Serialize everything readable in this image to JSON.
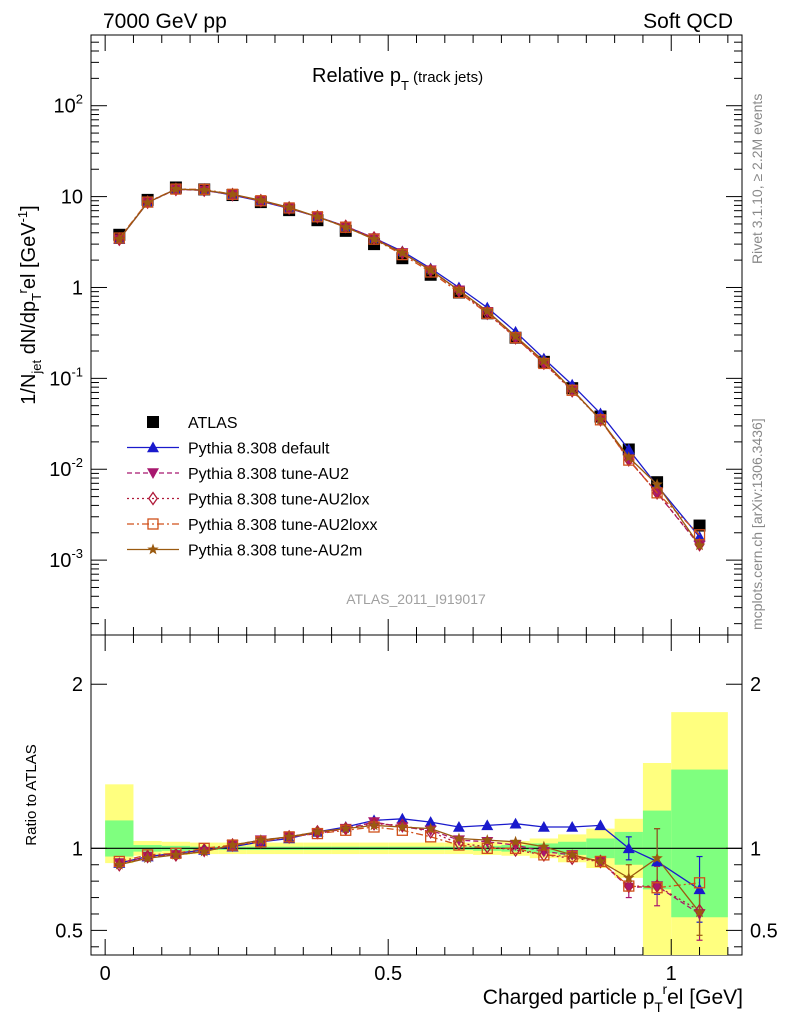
{
  "header": {
    "left": "7000 GeV pp",
    "right": "Soft QCD"
  },
  "side_labels": {
    "top": "Rivet 3.1.10, ≥ 2.2M events",
    "bottom": "mcplots.cern.ch [arXiv:1306.3436]"
  },
  "chart_data": [
    {
      "type": "scatter",
      "title": "Relative p_T (track jets)",
      "ylabel": "1/N_jet dN/dp_T^rel [GeV^-1]",
      "yscale": "log",
      "ylim": [
        0.00015,
        600
      ],
      "xlim": [
        -0.025,
        1.125
      ],
      "reference_label": "ATLAS_2011_I919017",
      "legend_position": "center-left",
      "x": [
        0.025,
        0.075,
        0.125,
        0.175,
        0.225,
        0.275,
        0.325,
        0.375,
        0.425,
        0.475,
        0.525,
        0.575,
        0.625,
        0.675,
        0.725,
        0.775,
        0.825,
        0.875,
        0.925,
        0.975,
        1.05
      ],
      "series": [
        {
          "name": "ATLAS",
          "marker": "square",
          "color": "#000000",
          "values": [
            3.8,
            9.2,
            12.6,
            12.0,
            10.4,
            8.7,
            7.1,
            5.5,
            4.2,
            3.0,
            2.1,
            1.38,
            0.88,
            0.52,
            0.28,
            0.152,
            0.078,
            0.038,
            0.0165,
            0.0072,
            0.0024
          ]
        },
        {
          "name": "Pythia 8.308 default",
          "marker": "triangle-up",
          "color": "#1a1acc",
          "values": [
            3.4,
            8.6,
            12.1,
            11.8,
            10.4,
            8.9,
            7.4,
            6.0,
            4.7,
            3.5,
            2.5,
            1.62,
            1.0,
            0.6,
            0.325,
            0.165,
            0.085,
            0.041,
            0.0165,
            0.0066,
            0.0018
          ]
        },
        {
          "name": "Pythia 8.308 tune-AU2",
          "marker": "triangle-down",
          "color": "#a8186f",
          "values": [
            3.4,
            8.6,
            12.0,
            11.7,
            10.5,
            9.0,
            7.5,
            6.0,
            4.7,
            3.5,
            2.4,
            1.55,
            0.93,
            0.54,
            0.285,
            0.148,
            0.075,
            0.035,
            0.0128,
            0.0055,
            0.00145
          ]
        },
        {
          "name": "Pythia 8.308 tune-AU2lox",
          "marker": "diamond-open",
          "color": "#b01a3a",
          "values": [
            3.4,
            8.7,
            12.0,
            11.8,
            10.5,
            9.0,
            7.5,
            6.0,
            4.7,
            3.5,
            2.4,
            1.54,
            0.92,
            0.52,
            0.28,
            0.147,
            0.073,
            0.035,
            0.0127,
            0.0055,
            0.00148
          ]
        },
        {
          "name": "Pythia 8.308 tune-AU2loxx",
          "marker": "square-open",
          "color": "#d0501a",
          "values": [
            3.5,
            8.7,
            12.1,
            12.0,
            10.6,
            9.0,
            7.5,
            6.0,
            4.6,
            3.4,
            2.3,
            1.48,
            0.88,
            0.52,
            0.28,
            0.146,
            0.074,
            0.035,
            0.0126,
            0.0055,
            0.0019
          ]
        },
        {
          "name": "Pythia 8.308 tune-AU2m",
          "marker": "star",
          "color": "#9a5a10",
          "values": [
            3.4,
            8.6,
            12.1,
            11.8,
            10.6,
            9.1,
            7.6,
            6.0,
            4.6,
            3.4,
            2.4,
            1.55,
            0.93,
            0.55,
            0.29,
            0.155,
            0.075,
            0.035,
            0.0135,
            0.0068,
            0.00145
          ]
        }
      ]
    },
    {
      "type": "scatter",
      "ylabel": "Ratio to ATLAS",
      "xlabel": "Charged particle p_T^rel [GeV]",
      "ylim": [
        0.35,
        2.3
      ],
      "xlim": [
        -0.025,
        1.125
      ],
      "x_ticks": [
        "0",
        "0.5",
        "1"
      ],
      "y_ticks": [
        "0.5",
        "1",
        "2"
      ],
      "bands": {
        "x_edges": [
          0.0,
          0.05,
          0.1,
          0.15,
          0.2,
          0.25,
          0.3,
          0.35,
          0.4,
          0.45,
          0.5,
          0.55,
          0.6,
          0.65,
          0.7,
          0.75,
          0.8,
          0.85,
          0.9,
          0.95,
          1.0,
          1.1
        ],
        "stat_color": "#7fff7f",
        "total_color": "#ffff7f",
        "total": [
          [
            0.91,
            1.39
          ],
          [
            0.955,
            1.045
          ],
          [
            0.96,
            1.04
          ],
          [
            0.965,
            1.035
          ],
          [
            0.965,
            1.035
          ],
          [
            0.965,
            1.035
          ],
          [
            0.965,
            1.035
          ],
          [
            0.965,
            1.035
          ],
          [
            0.965,
            1.035
          ],
          [
            0.965,
            1.035
          ],
          [
            0.965,
            1.035
          ],
          [
            0.965,
            1.035
          ],
          [
            0.965,
            1.035
          ],
          [
            0.96,
            1.04
          ],
          [
            0.955,
            1.045
          ],
          [
            0.94,
            1.06
          ],
          [
            0.915,
            1.085
          ],
          [
            0.88,
            1.12
          ],
          [
            0.82,
            1.18
          ],
          [
            0.35,
            1.52
          ],
          [
            0.35,
            1.83
          ]
        ],
        "stat": [
          [
            0.95,
            1.17
          ],
          [
            0.98,
            1.02
          ],
          [
            0.985,
            1.015
          ],
          [
            0.99,
            1.01
          ],
          [
            0.99,
            1.01
          ],
          [
            0.99,
            1.01
          ],
          [
            0.99,
            1.01
          ],
          [
            0.99,
            1.01
          ],
          [
            0.99,
            1.01
          ],
          [
            0.99,
            1.01
          ],
          [
            0.99,
            1.01
          ],
          [
            0.99,
            1.01
          ],
          [
            0.99,
            1.01
          ],
          [
            0.985,
            1.015
          ],
          [
            0.98,
            1.02
          ],
          [
            0.97,
            1.03
          ],
          [
            0.96,
            1.04
          ],
          [
            0.94,
            1.06
          ],
          [
            0.9,
            1.1
          ],
          [
            0.75,
            1.23
          ],
          [
            0.58,
            1.48
          ]
        ]
      },
      "series": [
        {
          "name": "Pythia 8.308 default",
          "values": [
            0.91,
            0.95,
            0.97,
            0.99,
            1.01,
            1.04,
            1.06,
            1.1,
            1.13,
            1.17,
            1.18,
            1.16,
            1.13,
            1.14,
            1.15,
            1.13,
            1.13,
            1.14,
            1.0,
            0.92,
            0.75
          ]
        },
        {
          "name": "Pythia 8.308 tune-AU2",
          "values": [
            0.91,
            0.95,
            0.96,
            0.98,
            1.02,
            1.05,
            1.07,
            1.09,
            1.12,
            1.16,
            1.13,
            1.11,
            1.05,
            1.04,
            1.02,
            0.98,
            0.96,
            0.92,
            0.76,
            0.77,
            0.6
          ]
        },
        {
          "name": "Pythia 8.308 tune-AU2lox",
          "values": [
            0.9,
            0.95,
            0.96,
            0.99,
            1.02,
            1.04,
            1.07,
            1.1,
            1.12,
            1.15,
            1.14,
            1.1,
            1.03,
            1.01,
            0.99,
            0.96,
            0.94,
            0.92,
            0.77,
            0.77,
            0.62
          ]
        },
        {
          "name": "Pythia 8.308 tune-AU2loxx",
          "values": [
            0.92,
            0.96,
            0.97,
            1.0,
            1.02,
            1.04,
            1.07,
            1.09,
            1.11,
            1.13,
            1.11,
            1.07,
            1.02,
            1.0,
            1.0,
            0.96,
            0.95,
            0.92,
            0.77,
            0.76,
            0.79
          ]
        },
        {
          "name": "Pythia 8.308 tune-AU2m",
          "values": [
            0.9,
            0.94,
            0.96,
            0.98,
            1.02,
            1.05,
            1.07,
            1.1,
            1.12,
            1.14,
            1.13,
            1.12,
            1.06,
            1.05,
            1.04,
            1.01,
            0.96,
            0.92,
            0.82,
            0.94,
            0.61
          ]
        }
      ],
      "error_bars": [
        {
          "series": "Pythia 8.308 default",
          "points": {
            "18": [
              0.93,
              1.07
            ],
            "19": [
              0.72,
              1.12
            ],
            "20": [
              0.55,
              0.95
            ]
          }
        },
        {
          "series": "Pythia 8.308 tune-AU2",
          "points": {
            "18": [
              0.7,
              0.82
            ],
            "19": [
              0.65,
              0.89
            ],
            "20": [
              0.44,
              0.76
            ]
          }
        },
        {
          "series": "Pythia 8.308 tune-AU2m",
          "points": {
            "18": [
              0.74,
              0.9
            ],
            "19": [
              0.76,
              1.12
            ],
            "20": [
              0.47,
              0.75
            ]
          }
        }
      ]
    }
  ],
  "top_axis_ticks": [
    "10^-3",
    "10^-2",
    "10^-1",
    "1",
    "10",
    "10^2"
  ]
}
